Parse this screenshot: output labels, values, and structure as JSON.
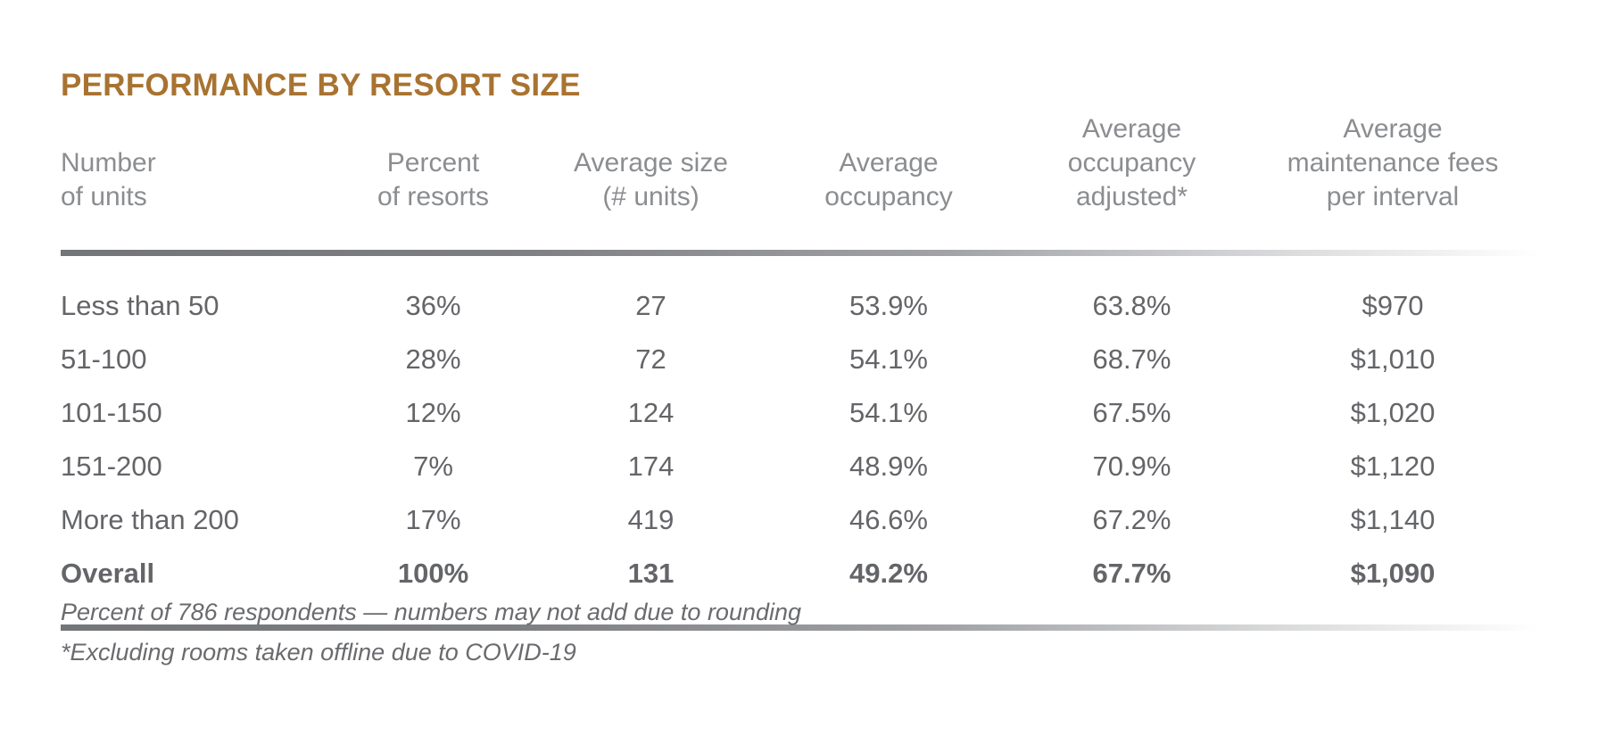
{
  "title": {
    "text": "PERFORMANCE BY RESORT SIZE"
  },
  "table": {
    "headers": [
      "Number\nof units",
      "Percent\nof resorts",
      "Average size\n(# units)",
      "Average\noccupancy",
      "Average\noccupancy\nadjusted*",
      "Average\nmaintenance fees\nper interval"
    ],
    "rows": [
      {
        "cells": [
          "Less than 50",
          "36%",
          "27",
          "53.9%",
          "63.8%",
          "$970"
        ]
      },
      {
        "cells": [
          "51-100",
          "28%",
          "72",
          "54.1%",
          "68.7%",
          "$1,010"
        ]
      },
      {
        "cells": [
          "101-150",
          "12%",
          "124",
          "54.1%",
          "67.5%",
          "$1,020"
        ]
      },
      {
        "cells": [
          "151-200",
          "7%",
          "174",
          "48.9%",
          "70.9%",
          "$1,120"
        ]
      },
      {
        "cells": [
          "More than 200",
          "17%",
          "419",
          "46.6%",
          "67.2%",
          "$1,140"
        ]
      },
      {
        "cells": [
          "Overall",
          "100%",
          "131",
          "49.2%",
          "67.7%",
          "$1,090"
        ]
      }
    ]
  },
  "footnotes": [
    "Percent of 786 respondents — numbers may not add due to rounding",
    "*Excluding rooms taken offline due to COVID-19"
  ],
  "colors": {
    "title_text": "#a87331",
    "header_text": "#8b8d90",
    "body_text": "#646568",
    "overall_text": "#4c4d4f",
    "footnote_text": "#6a6b6e",
    "rule_gradient_start": "#747578",
    "rule_gradient_end": "#ffffff",
    "background": "#ffffff"
  },
  "chart_data": {
    "type": "table",
    "title": "PERFORMANCE BY RESORT SIZE",
    "columns": [
      "Number of units",
      "Percent of resorts",
      "Average size (# units)",
      "Average occupancy",
      "Average occupancy adjusted*",
      "Average maintenance fees per interval"
    ],
    "rows": [
      [
        "Less than 50",
        "36%",
        27,
        "53.9%",
        "63.8%",
        "$970"
      ],
      [
        "51-100",
        "28%",
        72,
        "54.1%",
        "68.7%",
        "$1,010"
      ],
      [
        "101-150",
        "12%",
        124,
        "54.1%",
        "67.5%",
        "$1,020"
      ],
      [
        "151-200",
        "7%",
        174,
        "48.9%",
        "70.9%",
        "$1,120"
      ],
      [
        "More than 200",
        "17%",
        419,
        "46.6%",
        "67.2%",
        "$1,140"
      ],
      [
        "Overall",
        "100%",
        131,
        "49.2%",
        "67.7%",
        "$1,090"
      ]
    ],
    "footnotes": [
      "Percent of 786 respondents — numbers may not add due to rounding",
      "*Excluding rooms taken offline due to COVID-19"
    ]
  }
}
